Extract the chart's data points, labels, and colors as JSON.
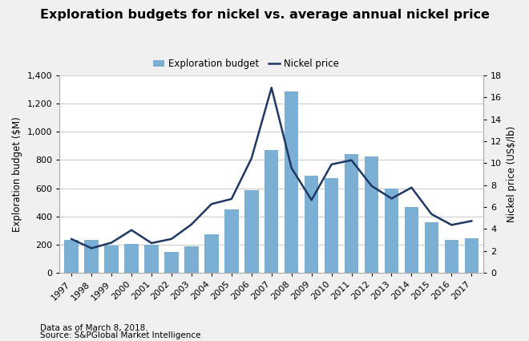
{
  "title": "Exploration budgets for nickel vs. average annual nickel price",
  "years": [
    1997,
    1998,
    1999,
    2000,
    2001,
    2002,
    2003,
    2004,
    2005,
    2006,
    2007,
    2008,
    2009,
    2010,
    2011,
    2012,
    2013,
    2014,
    2015,
    2016,
    2017
  ],
  "exploration_budget": [
    230,
    230,
    190,
    205,
    200,
    145,
    185,
    275,
    450,
    585,
    870,
    1285,
    690,
    670,
    840,
    825,
    595,
    465,
    360,
    235,
    245
  ],
  "nickel_price": [
    3.07,
    2.23,
    2.74,
    3.89,
    2.7,
    3.08,
    4.41,
    6.27,
    6.73,
    10.44,
    16.89,
    9.56,
    6.63,
    9.89,
    10.27,
    7.93,
    6.77,
    7.77,
    5.34,
    4.36,
    4.72
  ],
  "bar_color": "#7BAFD4",
  "line_color": "#1F3864",
  "ylabel_left": "Exploration budget ($M)",
  "ylabel_right": "Nickel price (US$/lb)",
  "ylim_left": [
    0,
    1400
  ],
  "ylim_right": [
    0,
    18
  ],
  "yticks_left": [
    0,
    200,
    400,
    600,
    800,
    1000,
    1200,
    1400
  ],
  "yticks_right": [
    0,
    2,
    4,
    6,
    8,
    10,
    12,
    14,
    16,
    18
  ],
  "legend_budget": "Exploration budget",
  "legend_price": "Nickel price",
  "footnote1": "Data as of March 8, 2018.",
  "footnote2": "Source: S&PGlobal Market Intelligence",
  "fig_background_color": "#F0F0F0",
  "plot_background_color": "#FFFFFF",
  "grid_color": "#CCCCCC",
  "title_fontsize": 11.5,
  "axis_label_fontsize": 8.5,
  "tick_fontsize": 8,
  "legend_fontsize": 8.5,
  "footnote_fontsize": 7.5
}
